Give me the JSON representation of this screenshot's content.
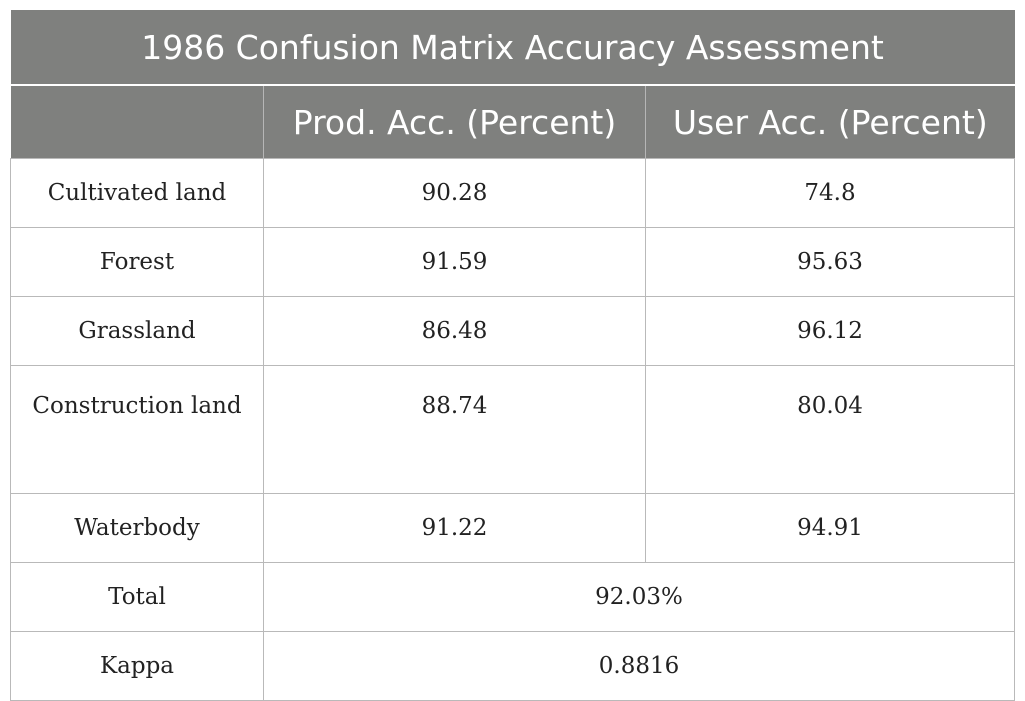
{
  "table": {
    "title": "1986 Confusion Matrix Accuracy Assessment",
    "headers": [
      "",
      "Prod. Acc. (Percent)",
      "User Acc. (Percent)"
    ],
    "rows": [
      {
        "label": "Cultivated land",
        "prod": "90.28",
        "user": "74.8"
      },
      {
        "label": "Forest",
        "prod": "91.59",
        "user": "95.63"
      },
      {
        "label": "Grassland",
        "prod": "86.48",
        "user": "96.12"
      },
      {
        "label": "Construction land",
        "prod": "88.74",
        "user": "80.04"
      },
      {
        "label": "Waterbody",
        "prod": "91.22",
        "user": "94.91"
      }
    ],
    "summary": [
      {
        "label": "Total",
        "value": "92.03%"
      },
      {
        "label": "Kappa",
        "value": "0.8816"
      }
    ]
  },
  "colors": {
    "header_bg": "#7f807e",
    "header_text": "#ffffff",
    "grid": "#b9b9b9"
  }
}
